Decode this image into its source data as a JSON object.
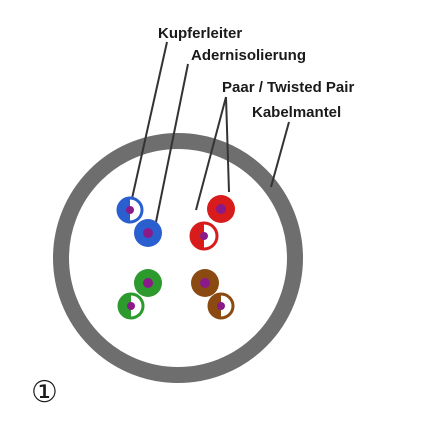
{
  "labels": {
    "conductor": "Kupferleiter",
    "insulation": "Adernisolierung",
    "pair": "Paar / Twisted Pair",
    "jacket": "Kabelmantel"
  },
  "figure_number": "①",
  "colors": {
    "jacket": "#6e6e6e",
    "background": "#ffffff",
    "conductor": "#8a1a8a",
    "pair_blue": "#2a5fd0",
    "pair_red": "#d81c1c",
    "pair_green": "#2d9a2d",
    "pair_brown": "#8a4a12",
    "white_stripe": "#f4f4f4",
    "leader": "#333333"
  },
  "pairs": [
    {
      "name": "blue-pair",
      "solid_color": "pair_blue"
    },
    {
      "name": "red-pair",
      "solid_color": "pair_red"
    },
    {
      "name": "green-pair",
      "solid_color": "pair_green"
    },
    {
      "name": "brown-pair",
      "solid_color": "pair_brown"
    }
  ]
}
